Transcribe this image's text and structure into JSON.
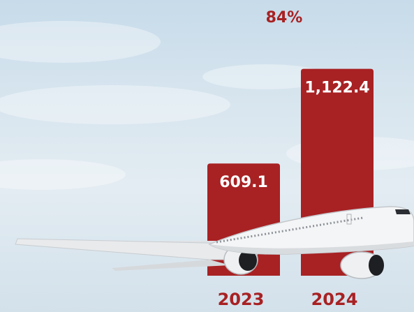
{
  "chart_data": {
    "type": "bar",
    "title": "",
    "xlabel": "",
    "ylabel": "",
    "categories": [
      "2023",
      "2024"
    ],
    "values": [
      609.1,
      1122.4
    ],
    "value_labels": [
      "609.1",
      "1,122.4"
    ],
    "annotation": "84%",
    "ylim": [
      0,
      1250
    ],
    "grid": false,
    "legend": "none"
  },
  "colors": {
    "bar": "#a82123",
    "value_label": "#ffffff",
    "category_label": "#a82123",
    "annotation": "#a82123"
  },
  "decoration": {
    "background": "sky-with-clouds",
    "illustration": "airplane-icon"
  }
}
